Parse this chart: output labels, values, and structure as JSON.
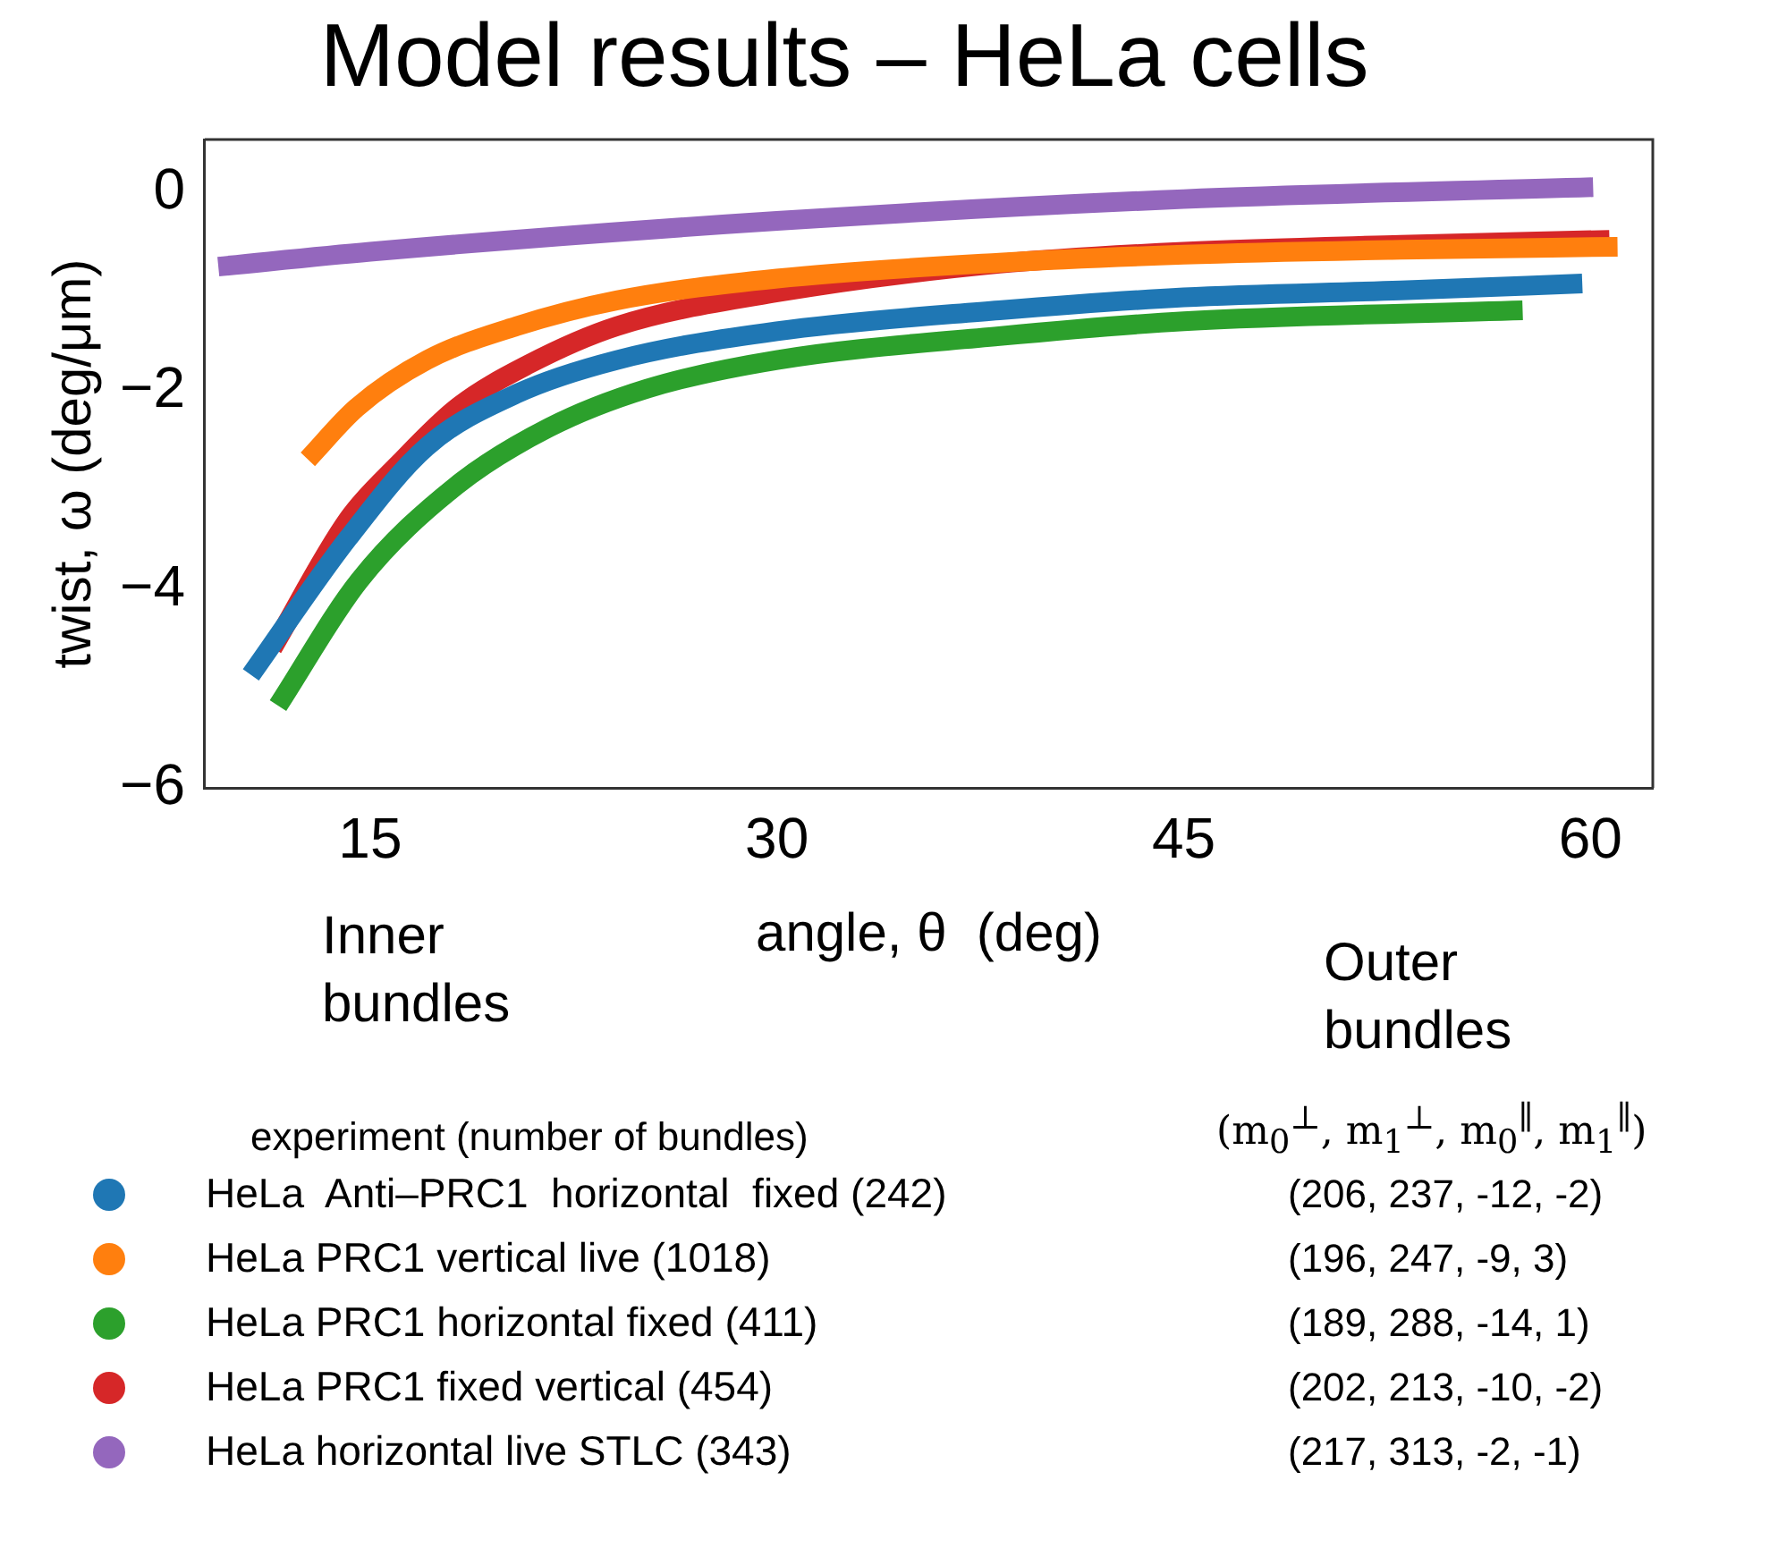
{
  "chart_data": {
    "type": "line",
    "title": "Model results – HeLa cells",
    "xlabel": "angle, θ  (deg)",
    "ylabel": "twist, ω (deg/μm)",
    "xlim": [
      8.9,
      62.3
    ],
    "xticks": [
      15,
      30,
      45,
      60
    ],
    "ylim": [
      -6,
      0.53
    ],
    "yticks": [
      -6,
      -4,
      -2,
      0
    ],
    "grid": false,
    "legend": "bottom",
    "legend_title": "experiment (number of bundles)",
    "marker": "none",
    "line_style": "solid",
    "series": [
      {
        "name": "HeLa  Anti–PRC1  horizontal  fixed (242)",
        "color": "#1f77b4",
        "x": [
          10.6,
          14.2,
          17.1,
          20.4,
          24.1,
          30,
          38.2,
          45,
          53,
          59.7
        ],
        "values": [
          -4.86,
          -3.48,
          -2.56,
          -2.03,
          -1.69,
          -1.4,
          -1.19,
          -1.06,
          -0.99,
          -0.92
        ]
      },
      {
        "name": "HeLa PRC1 vertical live (1018)",
        "color": "#ff7f0e",
        "x": [
          12.7,
          14.5,
          17.1,
          20.4,
          24.1,
          30,
          38.2,
          45,
          53,
          61
        ],
        "values": [
          -2.69,
          -2.17,
          -1.69,
          -1.35,
          -1.09,
          -0.87,
          -0.71,
          -0.63,
          -0.58,
          -0.55
        ]
      },
      {
        "name": "HeLa PRC1 horizontal fixed (411)",
        "color": "#2ca02c",
        "x": [
          11.6,
          14.6,
          18.2,
          21.6,
          25.2,
          30,
          38.2,
          45,
          57.5
        ],
        "values": [
          -5.17,
          -3.91,
          -2.95,
          -2.37,
          -1.98,
          -1.69,
          -1.45,
          -1.3,
          -1.19
        ]
      },
      {
        "name": "HeLa PRC1 fixed vertical (454)",
        "color": "#d62728",
        "x": [
          11.4,
          14.2,
          16,
          18.2,
          20.8,
          24.1,
          30,
          38.2,
          45,
          53,
          60.7
        ],
        "values": [
          -4.59,
          -3.29,
          -2.75,
          -2.17,
          -1.74,
          -1.35,
          -1.01,
          -0.72,
          -0.6,
          -0.53,
          -0.48
        ]
      },
      {
        "name": "HeLa horizontal live STLC (343)",
        "color": "#9467bd",
        "x": [
          9.4,
          15,
          30,
          45,
          60.1
        ],
        "values": [
          -0.75,
          -0.6,
          -0.29,
          -0.07,
          0.05
        ]
      }
    ],
    "annotations": [
      "Inner bundles",
      "Outer bundles",
      "(m$_{0}$$^{⊥}$, m$_{1}$$^{⊥}$, m$_{0}$$^{∥}$, m$_{1}$$^{∥}$)",
      "(206, 237, -12, -2)",
      "(196, 247, -9, 3)",
      "(189, 288, -14, 1)",
      "(202, 213, -10, -2)",
      "(217, 313, -2, -1)"
    ]
  }
}
